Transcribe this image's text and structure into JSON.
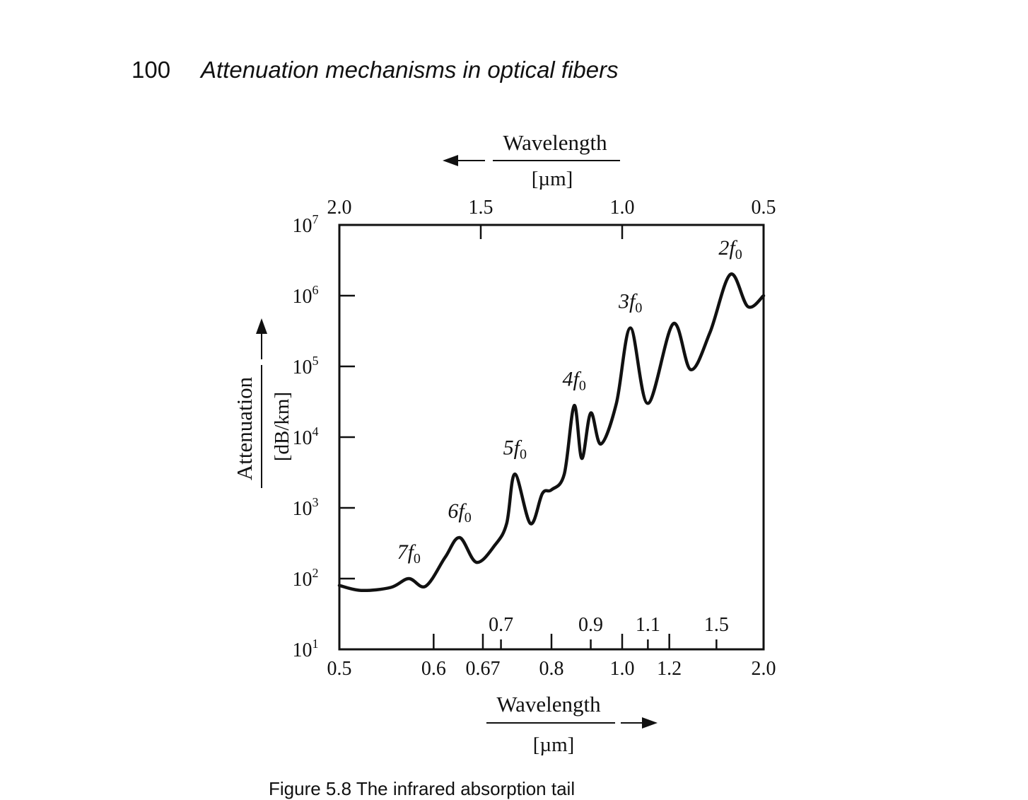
{
  "page": {
    "number": "100",
    "running_title": "Attenuation mechanisms in optical fibers",
    "caption_fragment": "Figure 5.8 The infrared absorption tail"
  },
  "chart_data": {
    "type": "line",
    "series": [
      {
        "values": [
          {
            "x": 0.5,
            "y": 80
          },
          {
            "x": 0.52,
            "y": 68
          },
          {
            "x": 0.55,
            "y": 75
          },
          {
            "x": 0.57,
            "y": 100
          },
          {
            "x": 0.59,
            "y": 78
          },
          {
            "x": 0.615,
            "y": 200
          },
          {
            "x": 0.635,
            "y": 380
          },
          {
            "x": 0.66,
            "y": 170
          },
          {
            "x": 0.69,
            "y": 300
          },
          {
            "x": 0.71,
            "y": 600
          },
          {
            "x": 0.725,
            "y": 3000
          },
          {
            "x": 0.755,
            "y": 600
          },
          {
            "x": 0.78,
            "y": 1600
          },
          {
            "x": 0.8,
            "y": 1800
          },
          {
            "x": 0.83,
            "y": 3000
          },
          {
            "x": 0.855,
            "y": 28000
          },
          {
            "x": 0.875,
            "y": 5000
          },
          {
            "x": 0.9,
            "y": 22000
          },
          {
            "x": 0.93,
            "y": 8000
          },
          {
            "x": 0.98,
            "y": 30000
          },
          {
            "x": 1.03,
            "y": 350000
          },
          {
            "x": 1.1,
            "y": 30000
          },
          {
            "x": 1.22,
            "y": 400000
          },
          {
            "x": 1.32,
            "y": 90000
          },
          {
            "x": 1.45,
            "y": 300000
          },
          {
            "x": 1.62,
            "y": 2000000
          },
          {
            "x": 1.8,
            "y": 700000
          },
          {
            "x": 2.0,
            "y": 1000000
          }
        ]
      }
    ],
    "annotations": [
      {
        "text": "7f",
        "sub": "0",
        "x": 0.57
      },
      {
        "text": "6f",
        "sub": "0",
        "x": 0.635
      },
      {
        "text": "5f",
        "sub": "0",
        "x": 0.725
      },
      {
        "text": "4f",
        "sub": "0",
        "x": 0.855
      },
      {
        "text": "3f",
        "sub": "0",
        "x": 1.03
      },
      {
        "text": "2f",
        "sub": "0",
        "x": 1.62
      }
    ],
    "yscale": "log",
    "ylim": [
      10,
      10000000
    ],
    "xlim": [
      0.5,
      2.0
    ],
    "ylabel": "Attenuation",
    "ylabel_unit": "[dB/km]",
    "y_ticks": [
      {
        "exp": "1",
        "value": 10
      },
      {
        "exp": "2",
        "value": 100
      },
      {
        "exp": "3",
        "value": 1000
      },
      {
        "exp": "4",
        "value": 10000
      },
      {
        "exp": "5",
        "value": 100000
      },
      {
        "exp": "6",
        "value": 1000000
      },
      {
        "exp": "7",
        "value": 10000000
      }
    ],
    "bottom_axis": {
      "label": "Wavelength",
      "unit": "[µm]",
      "ticks": [
        "0.5",
        "0.6",
        "0.67",
        "0.8",
        "1.0",
        "1.2",
        "2.0"
      ],
      "tick_values": [
        0.5,
        0.6,
        0.67,
        0.8,
        1.0,
        1.2,
        2.0
      ],
      "inner_ticks": [
        "0.7",
        "0.9",
        "1.1",
        "1.5"
      ],
      "inner_tick_values": [
        0.7,
        0.9,
        1.1,
        1.5
      ]
    },
    "top_axis": {
      "label": "Wavelength",
      "unit": "[µm]",
      "ticks": [
        "2.0",
        "1.5",
        "1.0",
        "0.5"
      ],
      "tick_values": [
        2.0,
        1.5,
        1.0,
        0.5
      ]
    }
  }
}
